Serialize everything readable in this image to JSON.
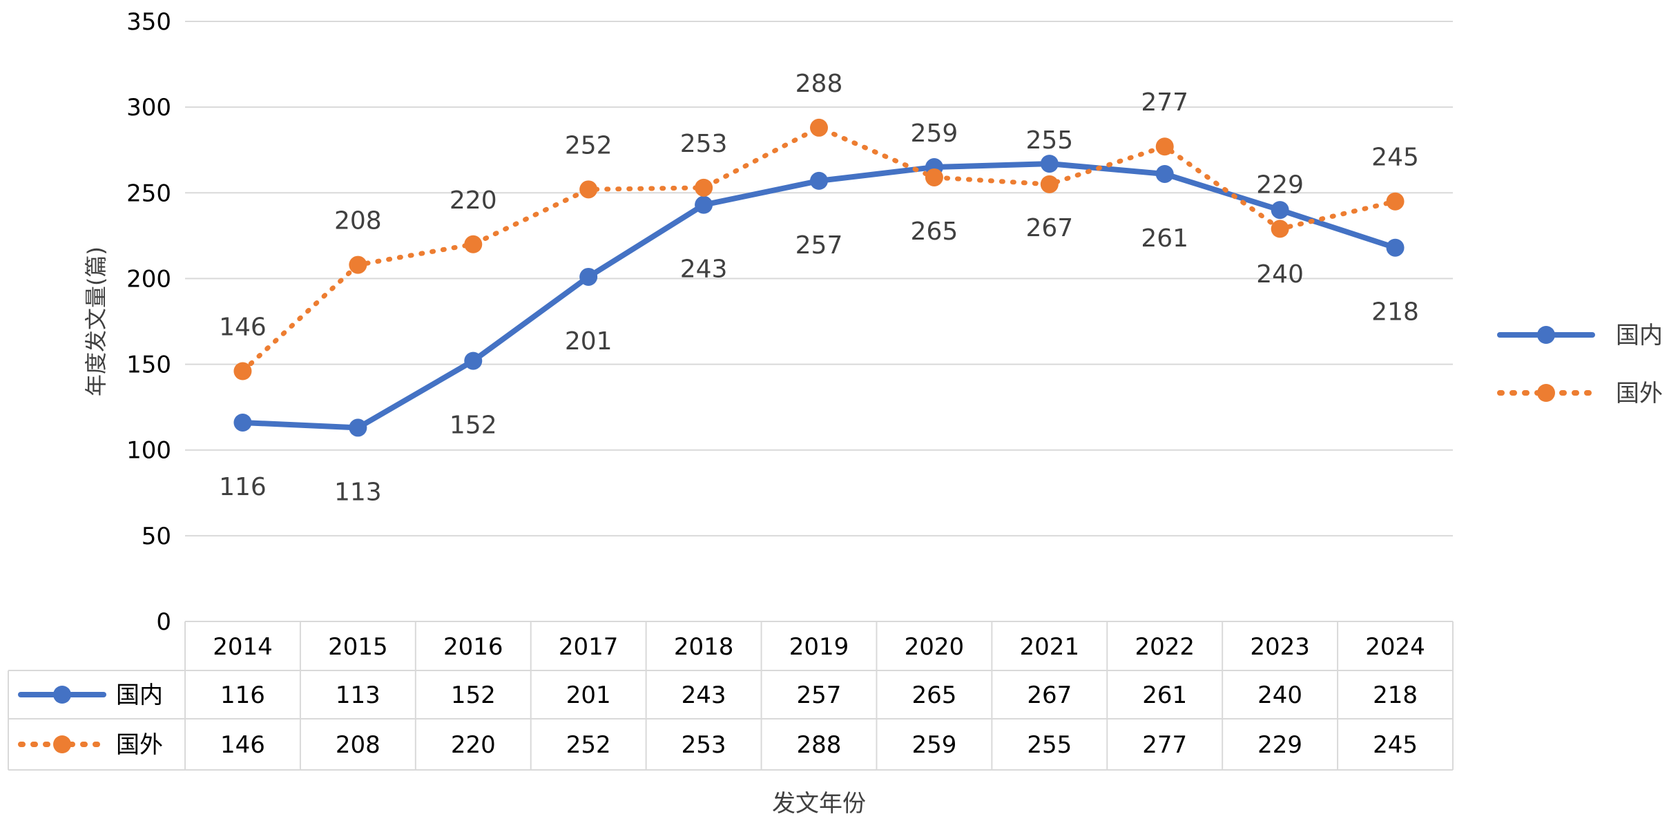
{
  "chart_data": {
    "type": "line",
    "title": "",
    "xlabel": "发文年份",
    "ylabel": "年度发文量(篇)",
    "ylim": [
      0,
      350
    ],
    "yticks": [
      0,
      50,
      100,
      150,
      200,
      250,
      300,
      350
    ],
    "grid": true,
    "legend_position": "right",
    "data_table": true,
    "categories": [
      "2014",
      "2015",
      "2016",
      "2017",
      "2018",
      "2019",
      "2020",
      "2021",
      "2022",
      "2023",
      "2024"
    ],
    "series": [
      {
        "name": "国内",
        "style": "solid",
        "color": "#4472C4",
        "values": [
          116,
          113,
          152,
          201,
          243,
          257,
          265,
          267,
          261,
          240,
          218
        ]
      },
      {
        "name": "国外",
        "style": "dotted",
        "color": "#ED7D31",
        "values": [
          146,
          208,
          220,
          252,
          253,
          288,
          259,
          255,
          277,
          229,
          245
        ]
      }
    ]
  }
}
